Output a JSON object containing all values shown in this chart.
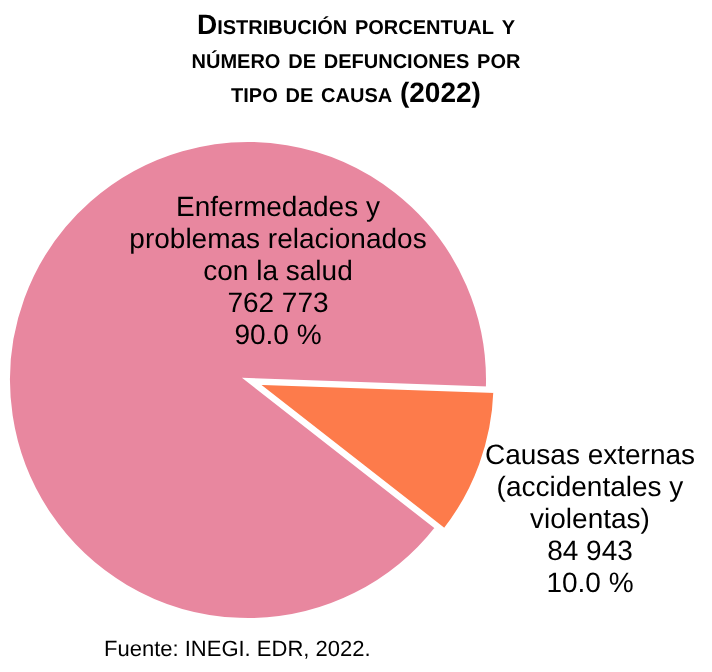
{
  "chart_data": {
    "type": "pie",
    "title": "Distribución porcentual y número de defunciones por tipo de causa (2022)",
    "categories": [
      "Enfermedades y problemas relacionados con la salud",
      "Causas externas (accidentales y violentas)"
    ],
    "values": [
      90.0,
      10.0
    ],
    "value_labels": [
      "762 773\n90.0 %",
      "84 943\n10.0 %"
    ],
    "colors": [
      "#e8879f",
      "#fd7b4b"
    ],
    "annotations": [
      "Fuente: INEGI. EDR, 2022."
    ]
  }
}
